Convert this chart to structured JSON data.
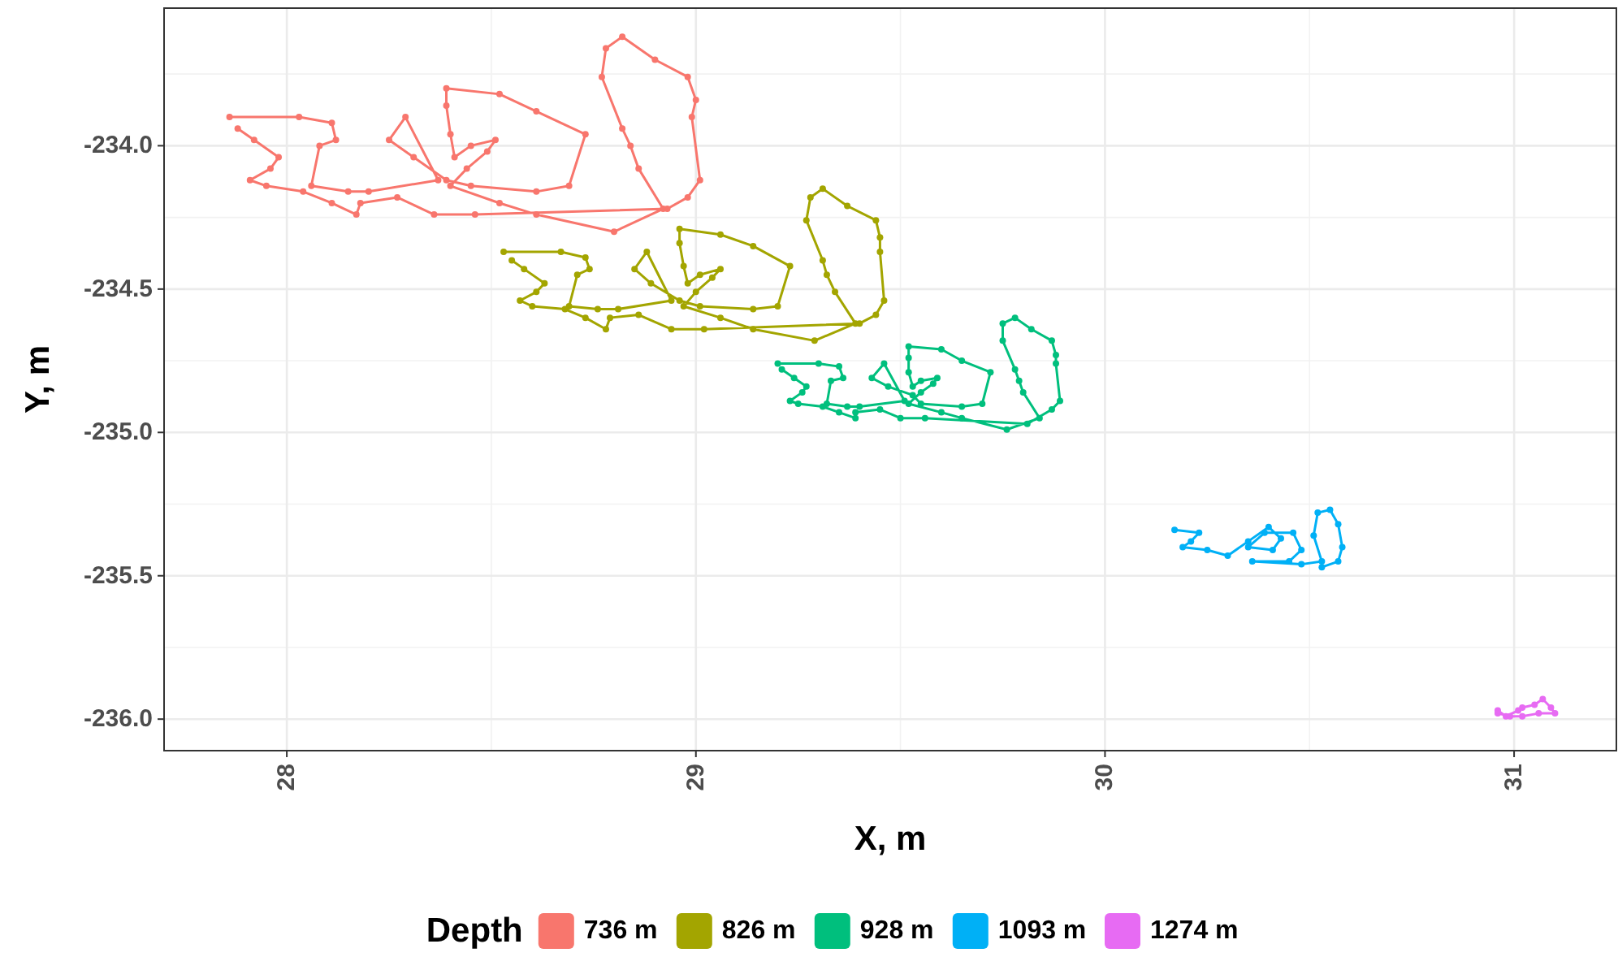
{
  "chart_data": {
    "type": "line",
    "xlabel": "X, m",
    "ylabel": "Y, m",
    "legend_title": "Depth",
    "legend": "bottom",
    "grid": true,
    "marker": "circle",
    "line_style": "solid",
    "xlim": [
      27.7,
      31.25
    ],
    "ylim": [
      -236.11,
      -233.52
    ],
    "xticks": [
      28,
      29,
      30,
      31
    ],
    "yticks": [
      {
        "value": -236,
        "label": "-236.0"
      },
      {
        "value": -235.5,
        "label": "-235.5"
      },
      {
        "value": -235,
        "label": "-235.0"
      },
      {
        "value": -234.5,
        "label": "-234.5"
      },
      {
        "value": -234,
        "label": "-234.0"
      }
    ],
    "series": [
      {
        "name": "736 m",
        "color": "#f8766d",
        "x": [
          27.86,
          28.03,
          28.11,
          28.12,
          28.08,
          28.06,
          28.15,
          28.2,
          28.37,
          28.29,
          28.25,
          28.31,
          28.39,
          28.45,
          28.61,
          28.69,
          28.73,
          28.61,
          28.52,
          28.39,
          28.39,
          28.4,
          28.41,
          28.45,
          28.51,
          28.49,
          28.44,
          28.4,
          28.52,
          28.61,
          28.8,
          28.92,
          28.86,
          28.84,
          28.82,
          28.77,
          28.78,
          28.82,
          28.9,
          28.98,
          29.0,
          28.99,
          29.01,
          28.98,
          28.93,
          28.46,
          28.36,
          28.27,
          28.18,
          28.17,
          28.11,
          28.04,
          27.95,
          27.91,
          27.96,
          27.98,
          27.92,
          27.88
        ],
        "values": [
          -233.9,
          -233.9,
          -233.92,
          -233.98,
          -234.0,
          -234.14,
          -234.16,
          -234.16,
          -234.12,
          -233.9,
          -233.98,
          -234.04,
          -234.12,
          -234.14,
          -234.16,
          -234.14,
          -233.96,
          -233.88,
          -233.82,
          -233.8,
          -233.86,
          -233.96,
          -234.04,
          -234.0,
          -233.98,
          -234.02,
          -234.08,
          -234.14,
          -234.2,
          -234.24,
          -234.3,
          -234.22,
          -234.08,
          -234.0,
          -233.94,
          -233.76,
          -233.66,
          -233.62,
          -233.7,
          -233.76,
          -233.84,
          -233.9,
          -234.12,
          -234.18,
          -234.22,
          -234.24,
          -234.24,
          -234.18,
          -234.2,
          -234.24,
          -234.2,
          -234.16,
          -234.14,
          -234.12,
          -234.08,
          -234.04,
          -233.98,
          -233.94
        ]
      },
      {
        "name": "826 m",
        "color": "#a3a500",
        "x": [
          28.53,
          28.67,
          28.73,
          28.74,
          28.71,
          28.69,
          28.76,
          28.81,
          28.94,
          28.88,
          28.85,
          28.89,
          28.96,
          29.01,
          29.14,
          29.2,
          29.23,
          29.14,
          29.06,
          28.96,
          28.96,
          28.97,
          28.98,
          29.01,
          29.06,
          29.04,
          29.0,
          28.97,
          29.06,
          29.14,
          29.29,
          29.39,
          29.34,
          29.32,
          29.31,
          29.27,
          29.28,
          29.31,
          29.37,
          29.44,
          29.45,
          29.45,
          29.46,
          29.44,
          29.4,
          29.02,
          28.94,
          28.86,
          28.79,
          28.78,
          28.73,
          28.68,
          28.6,
          28.57,
          28.61,
          28.63,
          28.58,
          28.55
        ],
        "values": [
          -234.37,
          -234.37,
          -234.39,
          -234.43,
          -234.45,
          -234.56,
          -234.57,
          -234.57,
          -234.54,
          -234.37,
          -234.43,
          -234.48,
          -234.54,
          -234.56,
          -234.57,
          -234.56,
          -234.42,
          -234.35,
          -234.31,
          -234.29,
          -234.34,
          -234.42,
          -234.48,
          -234.45,
          -234.43,
          -234.46,
          -234.51,
          -234.56,
          -234.6,
          -234.64,
          -234.68,
          -234.62,
          -234.51,
          -234.45,
          -234.4,
          -234.26,
          -234.18,
          -234.15,
          -234.21,
          -234.26,
          -234.32,
          -234.37,
          -234.54,
          -234.59,
          -234.62,
          -234.64,
          -234.64,
          -234.59,
          -234.6,
          -234.64,
          -234.6,
          -234.57,
          -234.56,
          -234.54,
          -234.51,
          -234.48,
          -234.43,
          -234.4
        ]
      },
      {
        "name": "928 m",
        "color": "#00bf7d",
        "x": [
          29.2,
          29.3,
          29.35,
          29.36,
          29.33,
          29.32,
          29.37,
          29.4,
          29.51,
          29.46,
          29.43,
          29.47,
          29.53,
          29.55,
          29.65,
          29.7,
          29.72,
          29.65,
          29.6,
          29.52,
          29.52,
          29.52,
          29.53,
          29.55,
          29.59,
          29.58,
          29.55,
          29.52,
          29.6,
          29.65,
          29.76,
          29.84,
          29.8,
          29.79,
          29.78,
          29.75,
          29.75,
          29.78,
          29.82,
          29.87,
          29.88,
          29.88,
          29.89,
          29.87,
          29.81,
          29.56,
          29.5,
          29.45,
          29.39,
          29.39,
          29.35,
          29.31,
          29.25,
          29.23,
          29.26,
          29.27,
          29.24,
          29.21
        ],
        "values": [
          -234.76,
          -234.76,
          -234.77,
          -234.81,
          -234.82,
          -234.9,
          -234.91,
          -234.91,
          -234.89,
          -234.76,
          -234.81,
          -234.84,
          -234.87,
          -234.9,
          -234.91,
          -234.9,
          -234.79,
          -234.75,
          -234.71,
          -234.7,
          -234.74,
          -234.79,
          -234.84,
          -234.82,
          -234.81,
          -234.83,
          -234.86,
          -234.9,
          -234.93,
          -234.95,
          -234.99,
          -234.95,
          -234.86,
          -234.82,
          -234.78,
          -234.68,
          -234.62,
          -234.6,
          -234.64,
          -234.68,
          -234.73,
          -234.76,
          -234.89,
          -234.92,
          -234.97,
          -234.95,
          -234.95,
          -234.92,
          -234.93,
          -234.95,
          -234.93,
          -234.91,
          -234.9,
          -234.89,
          -234.86,
          -234.84,
          -234.81,
          -234.78
        ]
      },
      {
        "name": "1093 m",
        "color": "#00b0f6",
        "x": [
          30.17,
          30.23,
          30.21,
          30.19,
          30.25,
          30.3,
          30.35,
          30.4,
          30.43,
          30.41,
          30.35,
          30.39,
          30.46,
          30.48,
          30.45,
          30.36,
          30.48,
          30.53,
          30.51,
          30.52,
          30.55,
          30.57,
          30.58,
          30.57,
          30.53
        ],
        "values": [
          -235.34,
          -235.35,
          -235.38,
          -235.4,
          -235.41,
          -235.43,
          -235.38,
          -235.33,
          -235.37,
          -235.41,
          -235.4,
          -235.35,
          -235.35,
          -235.41,
          -235.45,
          -235.45,
          -235.46,
          -235.45,
          -235.36,
          -235.28,
          -235.27,
          -235.32,
          -235.4,
          -235.45,
          -235.47
        ]
      },
      {
        "name": "1274 m",
        "color": "#e76bf3",
        "x": [
          30.96,
          30.98,
          31.01,
          31.02,
          31.05,
          31.07,
          31.09,
          31.1,
          31.06,
          31.02,
          30.99,
          30.96
        ],
        "values": [
          -235.97,
          -235.99,
          -235.97,
          -235.96,
          -235.95,
          -235.93,
          -235.96,
          -235.98,
          -235.98,
          -235.99,
          -235.99,
          -235.98
        ]
      }
    ]
  }
}
